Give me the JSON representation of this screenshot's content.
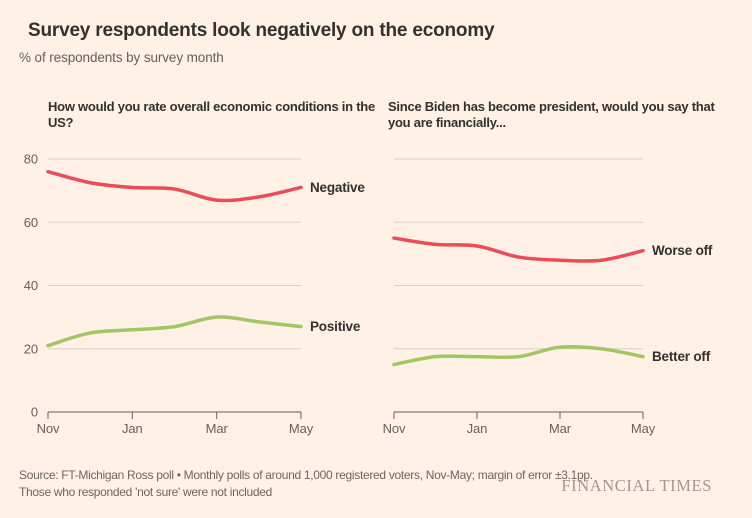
{
  "header": {
    "title": "Survey respondents look negatively on the economy",
    "subtitle": "% of respondents by survey month"
  },
  "chart_data": [
    {
      "type": "line",
      "title": "How would you rate overall economic conditions in the US?",
      "x": [
        "Nov",
        "Dec",
        "Jan",
        "Feb",
        "Mar",
        "Apr",
        "May"
      ],
      "x_tick_labels": [
        "Nov",
        "Jan",
        "Mar",
        "May"
      ],
      "ylim": [
        0,
        80
      ],
      "y_ticks": [
        0,
        20,
        40,
        60,
        80
      ],
      "grid": "horizontal",
      "legend_position": "right-end-labels",
      "series": [
        {
          "name": "Negative",
          "color": "#e94d5a",
          "values": [
            76,
            72.5,
            71,
            70.5,
            67,
            68,
            71
          ]
        },
        {
          "name": "Positive",
          "color": "#a3c662",
          "values": [
            21,
            25,
            26,
            27,
            30,
            28.5,
            27
          ]
        }
      ]
    },
    {
      "type": "line",
      "title": "Since Biden has become president, would you say that you are financially...",
      "x": [
        "Nov",
        "Dec",
        "Jan",
        "Feb",
        "Mar",
        "Apr",
        "May"
      ],
      "x_tick_labels": [
        "Nov",
        "Jan",
        "Mar",
        "May"
      ],
      "ylim": [
        0,
        80
      ],
      "y_ticks": [
        0,
        20,
        40,
        60,
        80
      ],
      "grid": "horizontal",
      "legend_position": "right-end-labels",
      "series": [
        {
          "name": "Worse off",
          "color": "#e94d5a",
          "values": [
            55,
            53,
            52.5,
            49,
            48,
            48,
            51
          ]
        },
        {
          "name": "Better off",
          "color": "#a3c662",
          "values": [
            15,
            17.5,
            17.5,
            17.5,
            20.5,
            20,
            17.5
          ]
        }
      ]
    }
  ],
  "footer": {
    "source": "Source: FT-Michigan Ross poll • Monthly polls of around 1,000 registered voters, Nov-May; margin of error ±3.1pp. Those who responded 'not sure' were not included",
    "logo": "FINANCIAL TIMES"
  },
  "colors": {
    "background": "#fff1e5",
    "title_text": "#33302e",
    "muted_text": "#66605c",
    "gridline": "#d9cfc5",
    "negative_red": "#e94d5a",
    "positive_green": "#a3c662"
  }
}
